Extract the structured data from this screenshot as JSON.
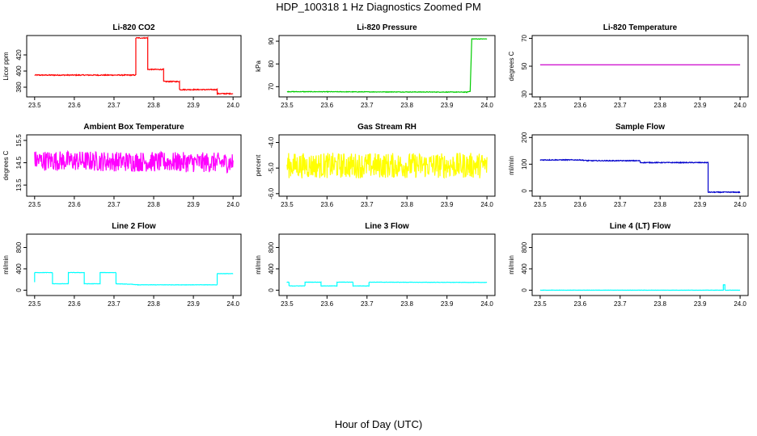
{
  "title": "HDP_100318  1 Hz Diagnostics Zoomed PM",
  "xlabel": "Hour of Day (UTC)",
  "chart_data": [
    {
      "type": "line",
      "title": "Li-820 CO2",
      "ylabel": "Licor ppm",
      "color": "#ff0000",
      "xlim": [
        23.48,
        24.02
      ],
      "ylim": [
        368,
        444
      ],
      "xticks": [
        "23.5",
        "23.6",
        "23.7",
        "23.8",
        "23.9",
        "24.0"
      ],
      "yticks": [
        "380",
        "400",
        "420"
      ],
      "noise": 0.6,
      "series": [
        {
          "x": [
            23.5,
            23.755,
            23.755,
            23.785,
            23.785,
            23.825,
            23.825,
            23.865,
            23.865,
            23.96,
            23.96,
            24.0
          ],
          "y": [
            395,
            395,
            441,
            441,
            402,
            402,
            387,
            387,
            377,
            377,
            372,
            372
          ]
        }
      ]
    },
    {
      "type": "line",
      "title": "Li-820 Pressure",
      "ylabel": "kPa",
      "color": "#00cc00",
      "xlim": [
        23.48,
        24.02
      ],
      "ylim": [
        65.5,
        92.5
      ],
      "xticks": [
        "23.5",
        "23.6",
        "23.7",
        "23.8",
        "23.9",
        "24.0"
      ],
      "yticks": [
        "70",
        "80",
        "90"
      ],
      "noise": 0.12,
      "series": [
        {
          "x": [
            23.5,
            23.95,
            23.958,
            23.962,
            24.0
          ],
          "y": [
            67.8,
            67.6,
            68,
            91,
            91
          ]
        }
      ]
    },
    {
      "type": "line",
      "title": "Li-820 Temperature",
      "ylabel": "degrees C",
      "color": "#cc00cc",
      "xlim": [
        23.48,
        24.02
      ],
      "ylim": [
        28,
        72
      ],
      "xticks": [
        "23.5",
        "23.6",
        "23.7",
        "23.8",
        "23.9",
        "24.0"
      ],
      "yticks": [
        "30",
        "50",
        "70"
      ],
      "noise": 0,
      "series": [
        {
          "x": [
            23.5,
            24.0
          ],
          "y": [
            51,
            51
          ]
        }
      ]
    },
    {
      "type": "line",
      "title": "Ambient Box Temperature",
      "ylabel": "degrees C",
      "color": "#ff00ff",
      "xlim": [
        23.48,
        24.02
      ],
      "ylim": [
        13.0,
        15.75
      ],
      "xticks": [
        "23.5",
        "23.6",
        "23.7",
        "23.8",
        "23.9",
        "24.0"
      ],
      "yticks": [
        "13.5",
        "14.5",
        "15.5"
      ],
      "noise": 0.45,
      "series": [
        {
          "x": [
            23.5,
            24.0
          ],
          "y": [
            14.6,
            14.5
          ]
        }
      ]
    },
    {
      "type": "line",
      "title": "Gas Stream RH",
      "ylabel": "percent",
      "color": "#ffff00",
      "xlim": [
        23.48,
        24.02
      ],
      "ylim": [
        -6.1,
        -3.7
      ],
      "xticks": [
        "23.5",
        "23.6",
        "23.7",
        "23.8",
        "23.9",
        "24.0"
      ],
      "yticks": [
        "-6.0",
        "-5.0",
        "-4.0"
      ],
      "noise": 0.5,
      "series": [
        {
          "x": [
            23.5,
            24.0
          ],
          "y": [
            -4.9,
            -4.9
          ]
        }
      ]
    },
    {
      "type": "line",
      "title": "Sample Flow",
      "ylabel": "ml/min",
      "color": "#0000cc",
      "xlim": [
        23.48,
        24.02
      ],
      "ylim": [
        -20,
        210
      ],
      "xticks": [
        "23.5",
        "23.6",
        "23.7",
        "23.8",
        "23.9",
        "24.0"
      ],
      "yticks": [
        "0",
        "100",
        "200"
      ],
      "noise": 1.5,
      "series": [
        {
          "x": [
            23.5,
            23.6,
            23.62,
            23.75,
            23.75,
            23.92,
            23.92,
            24.0
          ],
          "y": [
            116,
            116,
            113,
            113,
            106,
            106,
            -5,
            -5
          ]
        }
      ]
    },
    {
      "type": "line",
      "title": "Line 2 Flow",
      "ylabel": "ml/min",
      "color": "#00ffff",
      "xlim": [
        23.48,
        24.02
      ],
      "ylim": [
        -100,
        1050
      ],
      "xticks": [
        "23.5",
        "23.6",
        "23.7",
        "23.8",
        "23.9",
        "24.0"
      ],
      "yticks": [
        "0",
        "400",
        "800"
      ],
      "noise": 3,
      "series": [
        {
          "x": [
            23.5,
            23.5,
            23.545,
            23.545,
            23.585,
            23.585,
            23.625,
            23.625,
            23.665,
            23.665,
            23.705,
            23.705,
            23.745,
            23.76,
            23.96,
            23.96,
            24.0
          ],
          "y": [
            150,
            330,
            330,
            120,
            120,
            330,
            330,
            120,
            120,
            330,
            330,
            120,
            110,
            100,
            100,
            310,
            310
          ]
        }
      ]
    },
    {
      "type": "line",
      "title": "Line 3 Flow",
      "ylabel": "ml/min",
      "color": "#00ffff",
      "xlim": [
        23.48,
        24.02
      ],
      "ylim": [
        -100,
        1050
      ],
      "xticks": [
        "23.5",
        "23.6",
        "23.7",
        "23.8",
        "23.9",
        "24.0"
      ],
      "yticks": [
        "0",
        "400",
        "800"
      ],
      "noise": 3,
      "series": [
        {
          "x": [
            23.5,
            23.5,
            23.505,
            23.505,
            23.545,
            23.545,
            23.585,
            23.585,
            23.625,
            23.625,
            23.665,
            23.665,
            23.705,
            23.705,
            24.0
          ],
          "y": [
            150,
            150,
            150,
            80,
            80,
            150,
            150,
            80,
            80,
            150,
            150,
            80,
            80,
            150,
            145
          ]
        }
      ]
    },
    {
      "type": "line",
      "title": "Line 4 (LT) Flow",
      "ylabel": "ml/min",
      "color": "#00ffff",
      "xlim": [
        23.48,
        24.02
      ],
      "ylim": [
        -100,
        1050
      ],
      "xticks": [
        "23.5",
        "23.6",
        "23.7",
        "23.8",
        "23.9",
        "24.0"
      ],
      "yticks": [
        "0",
        "400",
        "800"
      ],
      "noise": 2,
      "series": [
        {
          "x": [
            23.5,
            23.958,
            23.958,
            23.962,
            23.962,
            24.0
          ],
          "y": [
            0,
            0,
            100,
            100,
            0,
            0
          ]
        }
      ]
    }
  ]
}
